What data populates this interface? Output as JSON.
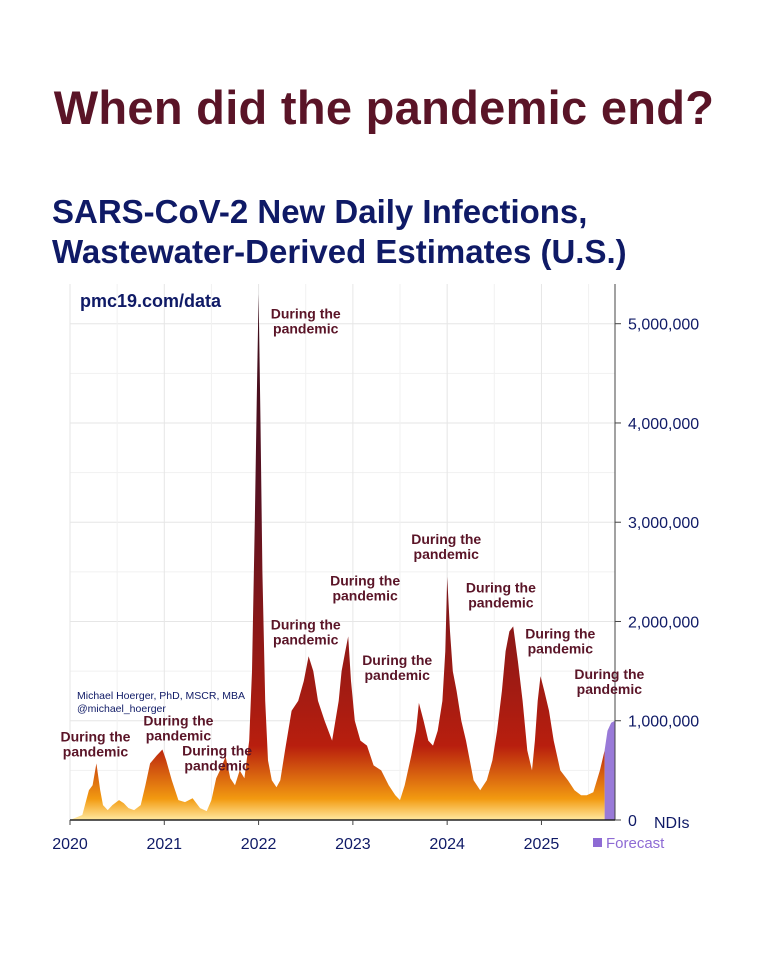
{
  "headline": "When did the pandemic end?",
  "chart_data": {
    "type": "area",
    "title_lines": [
      "SARS-CoV-2 New Daily Infections,",
      "Wastewater-Derived Estimates (U.S.)"
    ],
    "source": "pmc19.com/data",
    "credit_lines": [
      "Michael Hoerger, PhD, MSCR, MBA",
      "@michael_hoerger"
    ],
    "y_unit_label": "NDIs",
    "ylim": [
      0,
      5400000
    ],
    "y_ticks": [
      {
        "value": 0,
        "label": "0"
      },
      {
        "value": 1000000,
        "label": "1,000,000"
      },
      {
        "value": 2000000,
        "label": "2,000,000"
      },
      {
        "value": 3000000,
        "label": "3,000,000"
      },
      {
        "value": 4000000,
        "label": "4,000,000"
      },
      {
        "value": 5000000,
        "label": "5,000,000"
      }
    ],
    "xlim": [
      2020.0,
      2025.78
    ],
    "x_ticks": [
      {
        "value": 2020,
        "label": "2020"
      },
      {
        "value": 2021,
        "label": "2021"
      },
      {
        "value": 2022,
        "label": "2022"
      },
      {
        "value": 2023,
        "label": "2023"
      },
      {
        "value": 2024,
        "label": "2024"
      },
      {
        "value": 2025,
        "label": "2025"
      }
    ],
    "grid": true,
    "legend": {
      "position": "bottom-right",
      "label": "Forecast",
      "color": "#8e6bd4"
    },
    "colors": {
      "peak": "#3a0c1a",
      "mid": "#b81e0e",
      "low": "#f29a10",
      "base": "#ffe9a0",
      "text": "#0f1a66",
      "annotation": "#5a1427"
    },
    "forecast_from": 2025.67,
    "series": [
      {
        "x": [
          2020.0,
          2020.13,
          2020.2,
          2020.24,
          2020.28,
          2020.32,
          2020.35,
          2020.4,
          2020.45,
          2020.52,
          2020.57,
          2020.62,
          2020.68,
          2020.75,
          2020.8,
          2020.85,
          2020.92,
          2020.98,
          2021.02,
          2021.08,
          2021.15,
          2021.22,
          2021.3,
          2021.38,
          2021.45,
          2021.5,
          2021.55,
          2021.6,
          2021.65,
          2021.7,
          2021.75,
          2021.8,
          2021.85,
          2021.9,
          2021.93,
          2021.96,
          2021.98,
          2022.0,
          2022.02,
          2022.04,
          2022.07,
          2022.1,
          2022.14,
          2022.19,
          2022.23,
          2022.28,
          2022.35,
          2022.42,
          2022.48,
          2022.53,
          2022.58,
          2022.63,
          2022.7,
          2022.78,
          2022.85,
          2022.88,
          2022.92,
          2022.95,
          2022.98,
          2023.02,
          2023.08,
          2023.15,
          2023.22,
          2023.3,
          2023.38,
          2023.45,
          2023.5,
          2023.55,
          2023.62,
          2023.67,
          2023.7,
          2023.75,
          2023.8,
          2023.85,
          2023.9,
          2023.95,
          2023.98,
          2024.0,
          2024.03,
          2024.06,
          2024.1,
          2024.15,
          2024.2,
          2024.28,
          2024.35,
          2024.42,
          2024.48,
          2024.53,
          2024.58,
          2024.62,
          2024.66,
          2024.7,
          2024.75,
          2024.8,
          2024.85,
          2024.9,
          2024.93,
          2024.96,
          2024.99,
          2025.03,
          2025.08,
          2025.13,
          2025.2,
          2025.28,
          2025.35,
          2025.42,
          2025.48,
          2025.55,
          2025.62,
          2025.67,
          2025.7,
          2025.74,
          2025.78
        ],
        "y": [
          0,
          50000,
          300000,
          350000,
          570000,
          300000,
          150000,
          100000,
          150000,
          200000,
          170000,
          120000,
          100000,
          150000,
          350000,
          570000,
          650000,
          710000,
          600000,
          400000,
          200000,
          180000,
          220000,
          120000,
          90000,
          200000,
          420000,
          520000,
          640000,
          420000,
          350000,
          500000,
          420000,
          800000,
          1500000,
          3000000,
          4200000,
          5300000,
          4000000,
          2500000,
          1200000,
          600000,
          400000,
          330000,
          400000,
          700000,
          1100000,
          1200000,
          1400000,
          1650000,
          1500000,
          1200000,
          1000000,
          800000,
          1200000,
          1500000,
          1700000,
          1850000,
          1400000,
          1000000,
          800000,
          750000,
          550000,
          500000,
          350000,
          250000,
          200000,
          350000,
          650000,
          900000,
          1180000,
          1000000,
          800000,
          750000,
          900000,
          1200000,
          1700000,
          2450000,
          1900000,
          1500000,
          1300000,
          1000000,
          800000,
          400000,
          300000,
          400000,
          600000,
          900000,
          1300000,
          1700000,
          1900000,
          1950000,
          1600000,
          1200000,
          700000,
          500000,
          800000,
          1200000,
          1450000,
          1300000,
          1100000,
          800000,
          500000,
          400000,
          300000,
          250000,
          250000,
          280000,
          500000,
          700000,
          900000,
          980000,
          1000000
        ]
      }
    ],
    "annotations": [
      {
        "x": 2020.27,
        "y": 790000,
        "lines": [
          "During the",
          "pandemic"
        ]
      },
      {
        "x": 2021.15,
        "y": 950000,
        "lines": [
          "During the",
          "pandemic"
        ]
      },
      {
        "x": 2021.56,
        "y": 650000,
        "lines": [
          "During the",
          "pandemic"
        ]
      },
      {
        "x": 2022.5,
        "y": 5050000,
        "lines": [
          "During the",
          "pandemic"
        ]
      },
      {
        "x": 2022.5,
        "y": 1920000,
        "lines": [
          "During the",
          "pandemic"
        ]
      },
      {
        "x": 2023.13,
        "y": 2360000,
        "lines": [
          "During the",
          "pandemic"
        ]
      },
      {
        "x": 2023.47,
        "y": 1560000,
        "lines": [
          "During the",
          "pandemic"
        ]
      },
      {
        "x": 2023.99,
        "y": 2780000,
        "lines": [
          "During the",
          "pandemic"
        ]
      },
      {
        "x": 2024.57,
        "y": 2290000,
        "lines": [
          "During the",
          "pandemic"
        ]
      },
      {
        "x": 2025.2,
        "y": 1830000,
        "lines": [
          "During the",
          "pandemic"
        ]
      },
      {
        "x": 2025.72,
        "y": 1420000,
        "lines": [
          "During the",
          "pandemic"
        ]
      }
    ]
  }
}
